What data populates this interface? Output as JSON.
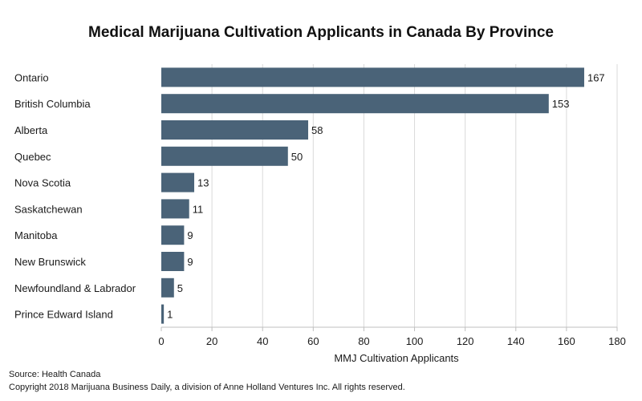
{
  "chart_data": {
    "type": "bar",
    "orientation": "horizontal",
    "title": "Medical Marijuana Cultivation Applicants in Canada By Province",
    "xlabel": "MMJ Cultivation Applicants",
    "ylabel": "",
    "xlim": [
      0,
      180
    ],
    "ticks": [
      0,
      20,
      40,
      60,
      80,
      100,
      120,
      140,
      160,
      180
    ],
    "grid": true,
    "legend": "none",
    "bar_color": "#4a6378",
    "categories": [
      "Ontario",
      "British Columbia",
      "Alberta",
      "Quebec",
      "Nova Scotia",
      "Saskatchewan",
      "Manitoba",
      "New Brunswick",
      "Newfoundland &  Labrador",
      "Prince Edward Island"
    ],
    "values": [
      167,
      153,
      58,
      50,
      13,
      11,
      9,
      9,
      5,
      1
    ]
  },
  "footer": {
    "source": "Source: Health Canada",
    "copyright": "Copyright 2018 Marijuana Business Daily, a division of Anne Holland Ventures Inc. All rights reserved."
  }
}
